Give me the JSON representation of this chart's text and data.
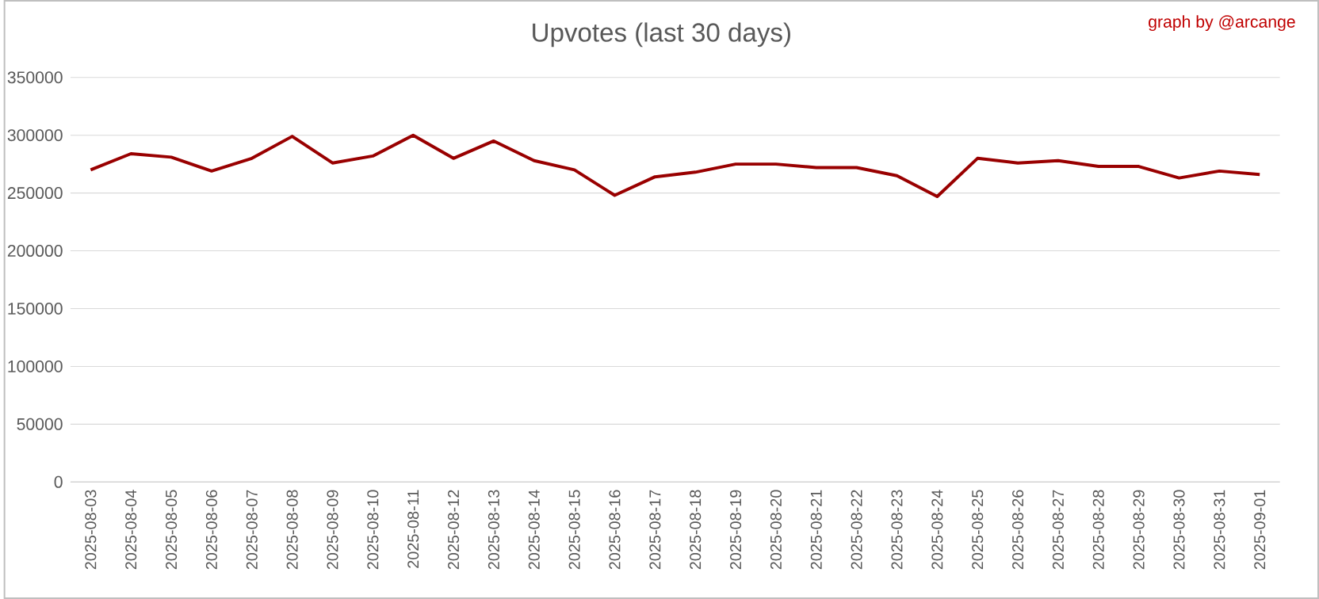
{
  "chart_data": {
    "type": "line",
    "title": "Upvotes (last 30 days)",
    "annotations": [
      "graph by @arcange"
    ],
    "categories": [
      "2025-08-03",
      "2025-08-04",
      "2025-08-05",
      "2025-08-06",
      "2025-08-07",
      "2025-08-08",
      "2025-08-09",
      "2025-08-10",
      "2025-08-11",
      "2025-08-12",
      "2025-08-13",
      "2025-08-14",
      "2025-08-15",
      "2025-08-16",
      "2025-08-17",
      "2025-08-18",
      "2025-08-19",
      "2025-08-20",
      "2025-08-21",
      "2025-08-22",
      "2025-08-23",
      "2025-08-24",
      "2025-08-25",
      "2025-08-26",
      "2025-08-27",
      "2025-08-28",
      "2025-08-29",
      "2025-08-30",
      "2025-08-31",
      "2025-09-01"
    ],
    "series": [
      {
        "color": "#990000",
        "values": [
          270000,
          284000,
          281000,
          269000,
          280000,
          299000,
          276000,
          282000,
          300000,
          280000,
          295000,
          278000,
          270000,
          248000,
          264000,
          268000,
          275000,
          275000,
          272000,
          272000,
          265000,
          247000,
          280000,
          276000,
          278000,
          273000,
          273000,
          263000,
          269000,
          266000
        ]
      }
    ],
    "ylim": [
      0,
      350000
    ],
    "yticks": [
      0,
      50000,
      100000,
      150000,
      200000,
      250000,
      300000,
      350000
    ],
    "grid": "y"
  }
}
